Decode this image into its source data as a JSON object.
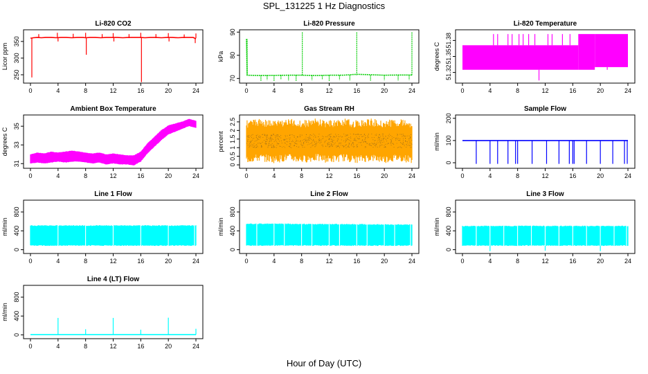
{
  "figure": {
    "title": "SPL_131225  1 Hz Diagnostics",
    "xlabel": "Hour of Day (UTC)"
  },
  "chart_data": [
    {
      "type": "line",
      "title": "Li-820 CO2",
      "ylabel": "Licor ppm",
      "color": "#ff0000",
      "xlim": [
        0,
        24
      ],
      "xticks": [
        0,
        4,
        8,
        12,
        16,
        20,
        24
      ],
      "ylim": [
        225,
        385
      ],
      "yticks": [
        250,
        300,
        350
      ],
      "series": [
        {
          "x": [
            0,
            0.2,
            0.4,
            1,
            1.6,
            2.2,
            3,
            3.8,
            4.4,
            5.2,
            6,
            6.8,
            7.6,
            8,
            8.6,
            9.4,
            10.2,
            11,
            11.8,
            12.6,
            13.4,
            14.2,
            15,
            15.8,
            16,
            16.6,
            17.4,
            18.2,
            19,
            19.8,
            20.6,
            21.4,
            22.2,
            23,
            23.6,
            24
          ],
          "y": [
            360,
            360,
            361,
            362,
            361,
            362,
            362,
            361,
            362,
            362,
            361,
            362,
            362,
            361,
            362,
            362,
            361,
            362,
            362,
            362,
            361,
            362,
            362,
            362,
            362,
            361,
            362,
            362,
            361,
            362,
            362,
            361,
            362,
            362,
            362,
            358
          ]
        }
      ],
      "spikes": [
        {
          "x": 0.2,
          "y": 242
        },
        {
          "x": 1.2,
          "y": 372
        },
        {
          "x": 3.9,
          "y": 376
        },
        {
          "x": 4.0,
          "y": 350
        },
        {
          "x": 6.2,
          "y": 373
        },
        {
          "x": 8.0,
          "y": 376
        },
        {
          "x": 8.1,
          "y": 310
        },
        {
          "x": 10.4,
          "y": 372
        },
        {
          "x": 12.0,
          "y": 375
        },
        {
          "x": 12.1,
          "y": 350
        },
        {
          "x": 14.3,
          "y": 372
        },
        {
          "x": 16.0,
          "y": 376
        },
        {
          "x": 16.1,
          "y": 228
        },
        {
          "x": 18.2,
          "y": 372
        },
        {
          "x": 20.0,
          "y": 375
        },
        {
          "x": 20.1,
          "y": 350
        },
        {
          "x": 22.3,
          "y": 371
        },
        {
          "x": 24.0,
          "y": 374
        },
        {
          "x": 23.9,
          "y": 345
        }
      ]
    },
    {
      "type": "line",
      "title": "Li-820 Pressure",
      "ylabel": "kPa",
      "color": "#00cc00",
      "xlim": [
        0,
        24
      ],
      "xticks": [
        0,
        4,
        8,
        12,
        16,
        20,
        24
      ],
      "ylim": [
        68,
        91
      ],
      "yticks": [
        70,
        80,
        90
      ],
      "series": [
        {
          "x": [
            0,
            0.1,
            2,
            6,
            8,
            10,
            12,
            14,
            16,
            18,
            20,
            22,
            24
          ],
          "y": [
            87,
            71.4,
            71.3,
            71.4,
            71.4,
            71.3,
            71.4,
            71.4,
            71.8,
            71.6,
            71.4,
            71.5,
            71.5
          ]
        }
      ],
      "spikes": [
        {
          "x": 0.1,
          "y": 87
        },
        {
          "x": 2.1,
          "y": 69
        },
        {
          "x": 3.0,
          "y": 69.4
        },
        {
          "x": 4.0,
          "y": 69
        },
        {
          "x": 5.0,
          "y": 69.5
        },
        {
          "x": 6.1,
          "y": 69.2
        },
        {
          "x": 7.2,
          "y": 69
        },
        {
          "x": 8.1,
          "y": 90
        },
        {
          "x": 9.5,
          "y": 69.3
        },
        {
          "x": 11.0,
          "y": 69.5
        },
        {
          "x": 12.0,
          "y": 69
        },
        {
          "x": 13.5,
          "y": 69.4
        },
        {
          "x": 15.0,
          "y": 69.2
        },
        {
          "x": 16.0,
          "y": 90
        },
        {
          "x": 18.0,
          "y": 69.1
        },
        {
          "x": 20.0,
          "y": 69.3
        },
        {
          "x": 22.0,
          "y": 69.2
        },
        {
          "x": 23.6,
          "y": 69.4
        },
        {
          "x": 24.0,
          "y": 90
        }
      ]
    },
    {
      "type": "line",
      "title": "Li-820 Temperature",
      "ylabel": "degrees C",
      "color": "#ff00ff",
      "xlim": [
        0,
        24
      ],
      "xticks": [
        0,
        4,
        8,
        12,
        16,
        20,
        24
      ],
      "ylim": [
        51.3,
        51.4
      ],
      "yticks": [
        51.32,
        51.35,
        51.38
      ],
      "bands": [
        {
          "x0": 0,
          "x1": 16.8,
          "low": 51.325,
          "high": 51.371
        },
        {
          "x0": 16.8,
          "x1": 19.2,
          "low": 51.325,
          "high": 51.392
        },
        {
          "x0": 19.2,
          "x1": 24,
          "low": 51.33,
          "high": 51.392
        }
      ],
      "spikes": [
        {
          "x": 4.5,
          "y": 51.392
        },
        {
          "x": 5.1,
          "y": 51.392
        },
        {
          "x": 6.6,
          "y": 51.392
        },
        {
          "x": 7.2,
          "y": 51.392
        },
        {
          "x": 8.2,
          "y": 51.392
        },
        {
          "x": 8.8,
          "y": 51.392
        },
        {
          "x": 9.6,
          "y": 51.392
        },
        {
          "x": 10.5,
          "y": 51.392
        },
        {
          "x": 11.1,
          "y": 51.305
        },
        {
          "x": 12.4,
          "y": 51.392
        },
        {
          "x": 13.0,
          "y": 51.392
        },
        {
          "x": 14.5,
          "y": 51.392
        },
        {
          "x": 15.6,
          "y": 51.392
        },
        {
          "x": 19.5,
          "y": 51.325
        },
        {
          "x": 19.8,
          "y": 51.325
        },
        {
          "x": 21.0,
          "y": 51.33
        }
      ]
    },
    {
      "type": "area",
      "title": "Ambient Box Temperature",
      "ylabel": "degrees C",
      "color": "#ff00ff",
      "xlim": [
        0,
        24
      ],
      "xticks": [
        0,
        4,
        8,
        12,
        16,
        20,
        24
      ],
      "ylim": [
        30.5,
        36.2
      ],
      "yticks": [
        31,
        33,
        35
      ],
      "x": [
        0,
        1,
        2,
        3,
        4,
        5,
        6,
        7,
        8,
        9,
        10,
        11,
        12,
        13,
        14,
        15,
        16,
        17,
        18,
        19,
        20,
        21,
        22,
        23,
        24
      ],
      "upper": [
        32.0,
        32.2,
        32.1,
        32.3,
        32.2,
        32.3,
        32.4,
        32.3,
        32.2,
        32.1,
        32.2,
        32.0,
        32.1,
        32.0,
        31.9,
        31.9,
        32.3,
        33.2,
        33.9,
        34.6,
        35.1,
        35.3,
        35.5,
        35.8,
        35.6
      ],
      "lower": [
        31.0,
        31.1,
        31.0,
        31.1,
        31.2,
        31.1,
        31.2,
        31.2,
        31.1,
        31.0,
        31.1,
        30.9,
        31.0,
        30.9,
        30.9,
        30.8,
        31.2,
        32.1,
        32.8,
        33.5,
        34.1,
        34.4,
        34.7,
        35.0,
        34.8
      ]
    },
    {
      "type": "area",
      "title": "Gas Stream RH",
      "ylabel": "percent",
      "color": "#ffa500",
      "accent": "#333333",
      "xlim": [
        0,
        24
      ],
      "xticks": [
        0,
        4,
        8,
        12,
        16,
        20,
        24
      ],
      "ylim": [
        -0.2,
        2.9
      ],
      "yticks": [
        0.0,
        0.5,
        1.0,
        1.5,
        2.0,
        2.5
      ],
      "x": [
        0,
        2,
        4,
        6,
        8,
        10,
        12,
        14,
        16,
        18,
        20,
        22,
        24
      ],
      "upper": [
        2.6,
        2.7,
        2.6,
        2.7,
        2.6,
        2.7,
        2.6,
        2.7,
        2.6,
        2.7,
        2.6,
        2.7,
        2.6
      ],
      "lower": [
        0.1,
        0.2,
        0.1,
        0.2,
        0.1,
        0.2,
        0.1,
        0.2,
        0.1,
        0.2,
        0.1,
        0.2,
        0.1
      ],
      "dense": [
        1.0,
        1.8
      ]
    },
    {
      "type": "line",
      "title": "Sample Flow",
      "ylabel": "ml/min",
      "color": "#0000ff",
      "xlim": [
        0,
        24
      ],
      "xticks": [
        0,
        4,
        8,
        12,
        16,
        20,
        24
      ],
      "ylim": [
        -25,
        215
      ],
      "yticks": [
        0,
        100,
        200
      ],
      "series": [
        {
          "x": [
            0,
            24
          ],
          "y": [
            100,
            100
          ]
        }
      ],
      "spikes": [
        {
          "x": 2.0,
          "y": -5
        },
        {
          "x": 4.0,
          "y": -5
        },
        {
          "x": 5.1,
          "y": -5
        },
        {
          "x": 6.6,
          "y": -5
        },
        {
          "x": 7.7,
          "y": -5
        },
        {
          "x": 8.0,
          "y": -5
        },
        {
          "x": 10.1,
          "y": -5
        },
        {
          "x": 12.2,
          "y": -5
        },
        {
          "x": 14.0,
          "y": -5
        },
        {
          "x": 15.5,
          "y": -5
        },
        {
          "x": 16.0,
          "y": -5
        },
        {
          "x": 16.2,
          "y": -5
        },
        {
          "x": 18.0,
          "y": -5
        },
        {
          "x": 20.0,
          "y": -5
        },
        {
          "x": 21.8,
          "y": -5
        },
        {
          "x": 23.5,
          "y": -5
        },
        {
          "x": 23.9,
          "y": -5
        }
      ]
    },
    {
      "type": "area",
      "title": "Line 1 Flow",
      "ylabel": "ml/min",
      "color": "#00ffff",
      "xlim": [
        0,
        24
      ],
      "xticks": [
        0,
        4,
        8,
        12,
        16,
        20,
        24
      ],
      "ylim": [
        -80,
        1050
      ],
      "yticks": [
        0,
        400,
        800
      ],
      "x": [
        0,
        24
      ],
      "upper": [
        520,
        520
      ],
      "lower": [
        80,
        80
      ],
      "gaps": [
        4.0,
        8.0,
        12.0,
        16.0,
        20.0,
        23.8
      ],
      "spikes": []
    },
    {
      "type": "area",
      "title": "Line 2 Flow",
      "ylabel": "ml/min",
      "color": "#00ffff",
      "xlim": [
        0,
        24
      ],
      "xticks": [
        0,
        4,
        8,
        12,
        16,
        20,
        24
      ],
      "ylim": [
        -80,
        1050
      ],
      "yticks": [
        0,
        400,
        800
      ],
      "x": [
        0,
        24
      ],
      "upper": [
        560,
        540
      ],
      "lower": [
        80,
        80
      ],
      "gaps": [
        1.5,
        4.0,
        5.5,
        8.0,
        9.5,
        12.0,
        13.5,
        16.0,
        17.5,
        20.0,
        21.5,
        23.8
      ],
      "spikes": []
    },
    {
      "type": "area",
      "title": "Line 3 Flow",
      "ylabel": "ml/min",
      "color": "#00ffff",
      "xlim": [
        0,
        24
      ],
      "xticks": [
        0,
        4,
        8,
        12,
        16,
        20,
        24
      ],
      "ylim": [
        -80,
        1050
      ],
      "yticks": [
        0,
        400,
        800
      ],
      "x": [
        0,
        24
      ],
      "upper": [
        510,
        510
      ],
      "lower": [
        80,
        80
      ],
      "gaps": [
        2.0,
        4.0,
        6.0,
        8.0,
        10.0,
        12.0,
        14.0,
        16.0,
        18.0,
        20.0,
        22.0,
        23.8
      ],
      "spikes": [
        {
          "x": 4.0,
          "y": -30
        },
        {
          "x": 12.0,
          "y": -20
        },
        {
          "x": 20.0,
          "y": -30
        }
      ]
    },
    {
      "type": "line",
      "title": "Line 4 (LT) Flow",
      "ylabel": "ml/min",
      "color": "#00ffff",
      "xlim": [
        0,
        24
      ],
      "xticks": [
        0,
        4,
        8,
        12,
        16,
        20,
        24
      ],
      "ylim": [
        -80,
        1050
      ],
      "yticks": [
        0,
        400,
        800
      ],
      "series": [
        {
          "x": [
            0,
            24
          ],
          "y": [
            5,
            5
          ]
        }
      ],
      "spikes": [
        {
          "x": 4.0,
          "y": 360
        },
        {
          "x": 8.0,
          "y": 120
        },
        {
          "x": 12.0,
          "y": 360
        },
        {
          "x": 16.0,
          "y": 110
        },
        {
          "x": 20.0,
          "y": 365
        },
        {
          "x": 24.0,
          "y": 130
        }
      ]
    }
  ]
}
